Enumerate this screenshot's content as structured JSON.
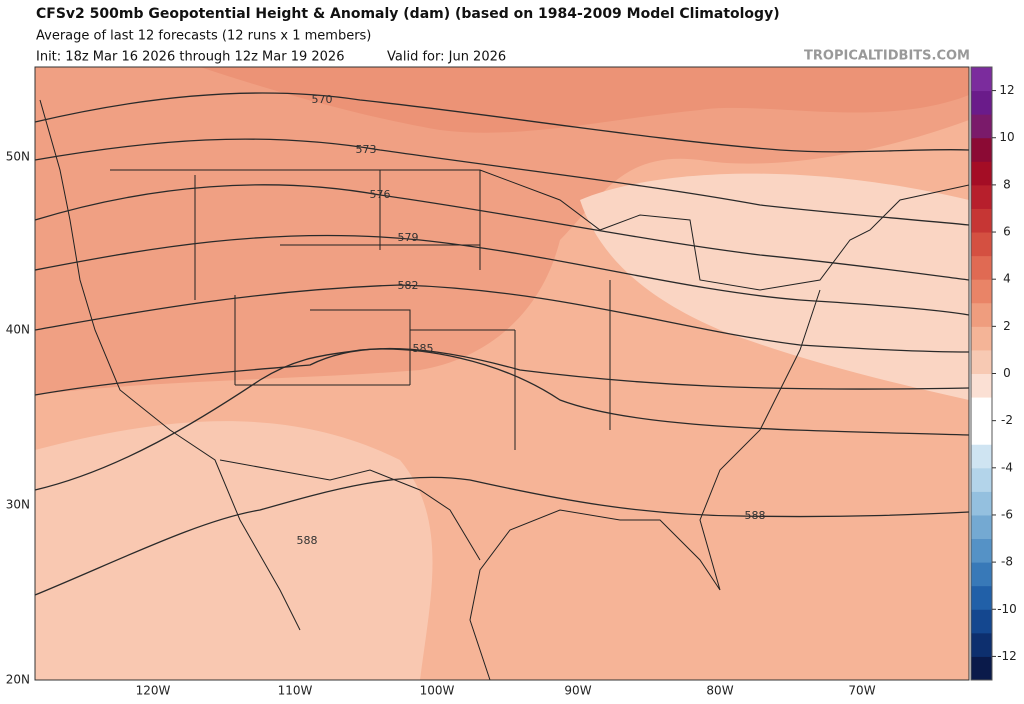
{
  "header": {
    "title": "CFSv2 500mb Geopotential Height & Anomaly (dam) (based on 1984-2009 Model Climatology)",
    "subtitle": "Average of last 12 forecasts (12 runs x 1 members)",
    "init": "Init: 18z Mar 16 2026 through 12z Mar 19 2026",
    "valid": "Valid for: Jun 2026",
    "watermark": "TROPICALTIDBITS.COM"
  },
  "map": {
    "lat_labels": [
      "50N",
      "40N",
      "30N",
      "20N"
    ],
    "lon_labels": [
      "120W",
      "110W",
      "100W",
      "90W",
      "80W",
      "70W"
    ],
    "contour_labels": [
      "570",
      "573",
      "576",
      "579",
      "582",
      "585",
      "588",
      "588"
    ]
  },
  "colorbar": {
    "range": [
      -13,
      13
    ],
    "ticks": [
      12,
      10,
      8,
      6,
      4,
      2,
      0,
      -2,
      -4,
      -6,
      -8,
      -10,
      -12
    ],
    "colors": [
      "#0a1a4a",
      "#0d2f6e",
      "#14478f",
      "#2160a8",
      "#3879b8",
      "#5592c6",
      "#74a9d2",
      "#94c0df",
      "#b3d4ea",
      "#cfe4f2",
      "#ffffff",
      "#ffffff",
      "#fbe0d4",
      "#f7c9b3",
      "#f4b497",
      "#ef9d7e",
      "#e98467",
      "#e06a53",
      "#d45041",
      "#c63634",
      "#b71f2c",
      "#a40d25",
      "#8b0a34",
      "#7a1a6a",
      "#6a1b8a",
      "#7b2c9d"
    ]
  }
}
